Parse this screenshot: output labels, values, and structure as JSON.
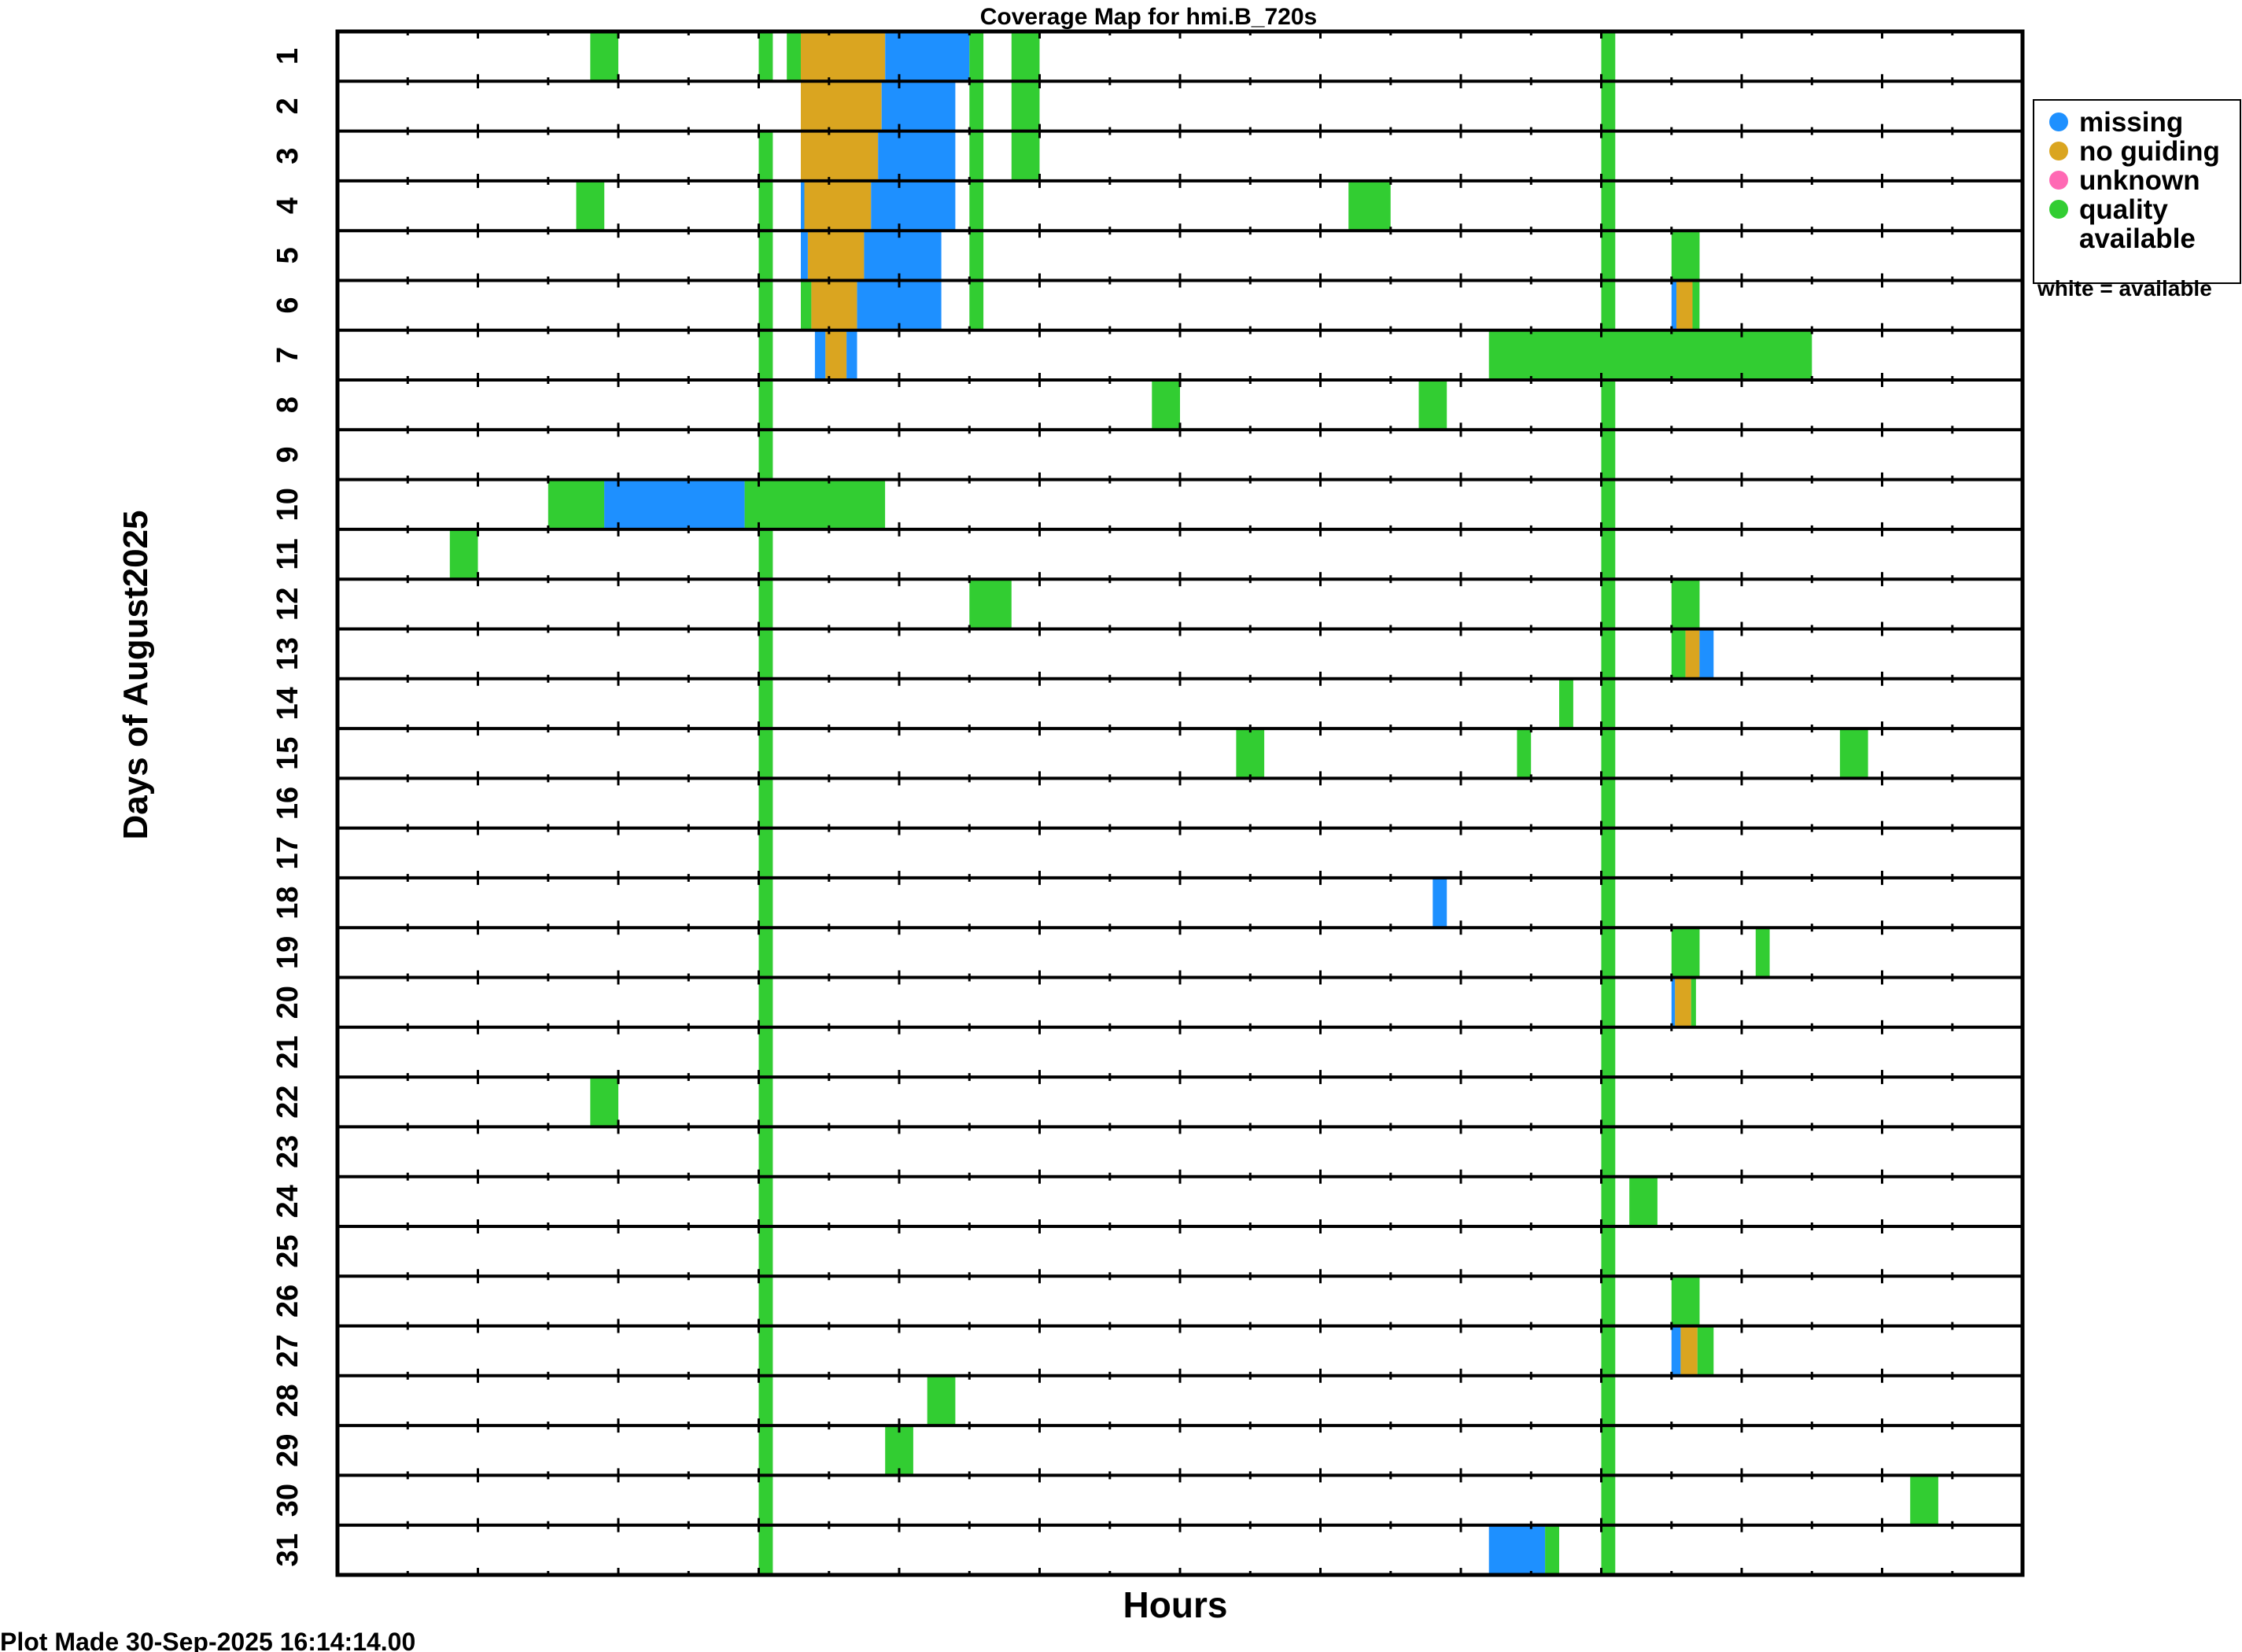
{
  "chart_data": {
    "type": "heatmap",
    "title": "Coverage Map for hmi.B_720s",
    "xlabel": "Hours",
    "ylabel": "Days of August2025",
    "xlim": [
      0,
      24
    ],
    "days": [
      "1",
      "2",
      "3",
      "4",
      "5",
      "6",
      "7",
      "8",
      "9",
      "10",
      "11",
      "12",
      "13",
      "14",
      "15",
      "16",
      "17",
      "18",
      "19",
      "20",
      "21",
      "22",
      "23",
      "24",
      "25",
      "26",
      "27",
      "28",
      "29",
      "30",
      "31"
    ],
    "colors": {
      "missing": "#1e90ff",
      "no_guiding": "#daa520",
      "unknown": "#ff69b4",
      "quality": "#32cd32"
    },
    "legend": {
      "position": "right",
      "items": [
        {
          "key": "missing",
          "label": "missing"
        },
        {
          "key": "no_guiding",
          "label": "no guiding"
        },
        {
          "key": "unknown",
          "label": "unknown"
        },
        {
          "key": "quality",
          "label": "quality",
          "label2": "available"
        }
      ],
      "note": "white = available"
    },
    "footer": "Plot Made 30-Sep-2025 16:14:14.00",
    "segments": [
      {
        "day": 1,
        "start": 3.6,
        "end": 4.0,
        "cat": "quality"
      },
      {
        "day": 1,
        "start": 6.0,
        "end": 6.2,
        "cat": "quality"
      },
      {
        "day": 1,
        "start": 6.4,
        "end": 6.6,
        "cat": "quality"
      },
      {
        "day": 1,
        "start": 6.6,
        "end": 7.8,
        "cat": "no_guiding"
      },
      {
        "day": 1,
        "start": 7.8,
        "end": 9.0,
        "cat": "missing"
      },
      {
        "day": 1,
        "start": 9.0,
        "end": 9.2,
        "cat": "quality"
      },
      {
        "day": 1,
        "start": 9.6,
        "end": 10.0,
        "cat": "quality"
      },
      {
        "day": 1,
        "start": 18.0,
        "end": 18.2,
        "cat": "quality"
      },
      {
        "day": 2,
        "start": 6.6,
        "end": 7.75,
        "cat": "no_guiding"
      },
      {
        "day": 2,
        "start": 7.75,
        "end": 8.8,
        "cat": "missing"
      },
      {
        "day": 2,
        "start": 9.0,
        "end": 9.2,
        "cat": "quality"
      },
      {
        "day": 2,
        "start": 9.6,
        "end": 10.0,
        "cat": "quality"
      },
      {
        "day": 2,
        "start": 18.0,
        "end": 18.2,
        "cat": "quality"
      },
      {
        "day": 3,
        "start": 6.0,
        "end": 6.2,
        "cat": "quality"
      },
      {
        "day": 3,
        "start": 6.6,
        "end": 7.7,
        "cat": "no_guiding"
      },
      {
        "day": 3,
        "start": 7.7,
        "end": 8.8,
        "cat": "missing"
      },
      {
        "day": 3,
        "start": 9.0,
        "end": 9.2,
        "cat": "quality"
      },
      {
        "day": 3,
        "start": 9.6,
        "end": 10.0,
        "cat": "quality"
      },
      {
        "day": 3,
        "start": 18.0,
        "end": 18.2,
        "cat": "quality"
      },
      {
        "day": 4,
        "start": 3.4,
        "end": 3.8,
        "cat": "quality"
      },
      {
        "day": 4,
        "start": 6.0,
        "end": 6.2,
        "cat": "quality"
      },
      {
        "day": 4,
        "start": 6.6,
        "end": 6.65,
        "cat": "missing"
      },
      {
        "day": 4,
        "start": 6.65,
        "end": 7.6,
        "cat": "no_guiding"
      },
      {
        "day": 4,
        "start": 7.6,
        "end": 8.8,
        "cat": "missing"
      },
      {
        "day": 4,
        "start": 9.0,
        "end": 9.2,
        "cat": "quality"
      },
      {
        "day": 4,
        "start": 14.4,
        "end": 15.0,
        "cat": "quality"
      },
      {
        "day": 4,
        "start": 18.0,
        "end": 18.2,
        "cat": "quality"
      },
      {
        "day": 5,
        "start": 6.0,
        "end": 6.2,
        "cat": "quality"
      },
      {
        "day": 5,
        "start": 6.6,
        "end": 6.7,
        "cat": "missing"
      },
      {
        "day": 5,
        "start": 6.7,
        "end": 7.5,
        "cat": "no_guiding"
      },
      {
        "day": 5,
        "start": 7.5,
        "end": 8.6,
        "cat": "missing"
      },
      {
        "day": 5,
        "start": 9.0,
        "end": 9.2,
        "cat": "quality"
      },
      {
        "day": 5,
        "start": 18.0,
        "end": 18.2,
        "cat": "quality"
      },
      {
        "day": 5,
        "start": 19.0,
        "end": 19.4,
        "cat": "quality"
      },
      {
        "day": 6,
        "start": 6.0,
        "end": 6.2,
        "cat": "quality"
      },
      {
        "day": 6,
        "start": 6.6,
        "end": 6.75,
        "cat": "quality"
      },
      {
        "day": 6,
        "start": 6.75,
        "end": 7.4,
        "cat": "no_guiding"
      },
      {
        "day": 6,
        "start": 7.4,
        "end": 8.6,
        "cat": "missing"
      },
      {
        "day": 6,
        "start": 9.0,
        "end": 9.2,
        "cat": "quality"
      },
      {
        "day": 6,
        "start": 18.0,
        "end": 18.2,
        "cat": "quality"
      },
      {
        "day": 6,
        "start": 19.0,
        "end": 19.07,
        "cat": "missing"
      },
      {
        "day": 6,
        "start": 19.07,
        "end": 19.3,
        "cat": "no_guiding"
      },
      {
        "day": 6,
        "start": 19.3,
        "end": 19.4,
        "cat": "quality"
      },
      {
        "day": 7,
        "start": 6.0,
        "end": 6.2,
        "cat": "quality"
      },
      {
        "day": 7,
        "start": 6.8,
        "end": 6.95,
        "cat": "missing"
      },
      {
        "day": 7,
        "start": 6.95,
        "end": 7.25,
        "cat": "no_guiding"
      },
      {
        "day": 7,
        "start": 7.25,
        "end": 7.4,
        "cat": "missing"
      },
      {
        "day": 7,
        "start": 16.4,
        "end": 21.0,
        "cat": "quality"
      },
      {
        "day": 8,
        "start": 6.0,
        "end": 6.2,
        "cat": "quality"
      },
      {
        "day": 8,
        "start": 11.6,
        "end": 12.0,
        "cat": "quality"
      },
      {
        "day": 8,
        "start": 15.4,
        "end": 15.8,
        "cat": "quality"
      },
      {
        "day": 8,
        "start": 18.0,
        "end": 18.2,
        "cat": "quality"
      },
      {
        "day": 9,
        "start": 6.0,
        "end": 6.2,
        "cat": "quality"
      },
      {
        "day": 9,
        "start": 18.0,
        "end": 18.2,
        "cat": "quality"
      },
      {
        "day": 10,
        "start": 3.0,
        "end": 3.8,
        "cat": "quality"
      },
      {
        "day": 10,
        "start": 3.8,
        "end": 5.8,
        "cat": "missing"
      },
      {
        "day": 10,
        "start": 5.8,
        "end": 7.8,
        "cat": "quality"
      },
      {
        "day": 10,
        "start": 18.0,
        "end": 18.2,
        "cat": "quality"
      },
      {
        "day": 11,
        "start": 1.6,
        "end": 2.0,
        "cat": "quality"
      },
      {
        "day": 11,
        "start": 6.0,
        "end": 6.2,
        "cat": "quality"
      },
      {
        "day": 11,
        "start": 18.0,
        "end": 18.2,
        "cat": "quality"
      },
      {
        "day": 12,
        "start": 6.0,
        "end": 6.2,
        "cat": "quality"
      },
      {
        "day": 12,
        "start": 9.0,
        "end": 9.6,
        "cat": "quality"
      },
      {
        "day": 12,
        "start": 18.0,
        "end": 18.2,
        "cat": "quality"
      },
      {
        "day": 12,
        "start": 19.0,
        "end": 19.4,
        "cat": "quality"
      },
      {
        "day": 13,
        "start": 6.0,
        "end": 6.2,
        "cat": "quality"
      },
      {
        "day": 13,
        "start": 18.0,
        "end": 18.2,
        "cat": "quality"
      },
      {
        "day": 13,
        "start": 19.0,
        "end": 19.2,
        "cat": "quality"
      },
      {
        "day": 13,
        "start": 19.2,
        "end": 19.4,
        "cat": "no_guiding"
      },
      {
        "day": 13,
        "start": 19.4,
        "end": 19.6,
        "cat": "missing"
      },
      {
        "day": 14,
        "start": 6.0,
        "end": 6.2,
        "cat": "quality"
      },
      {
        "day": 14,
        "start": 17.4,
        "end": 17.6,
        "cat": "quality"
      },
      {
        "day": 14,
        "start": 18.0,
        "end": 18.2,
        "cat": "quality"
      },
      {
        "day": 15,
        "start": 6.0,
        "end": 6.2,
        "cat": "quality"
      },
      {
        "day": 15,
        "start": 12.8,
        "end": 13.2,
        "cat": "quality"
      },
      {
        "day": 15,
        "start": 16.8,
        "end": 17.0,
        "cat": "quality"
      },
      {
        "day": 15,
        "start": 18.0,
        "end": 18.2,
        "cat": "quality"
      },
      {
        "day": 15,
        "start": 21.4,
        "end": 21.8,
        "cat": "quality"
      },
      {
        "day": 16,
        "start": 6.0,
        "end": 6.2,
        "cat": "quality"
      },
      {
        "day": 16,
        "start": 18.0,
        "end": 18.2,
        "cat": "quality"
      },
      {
        "day": 17,
        "start": 6.0,
        "end": 6.2,
        "cat": "quality"
      },
      {
        "day": 17,
        "start": 18.0,
        "end": 18.2,
        "cat": "quality"
      },
      {
        "day": 18,
        "start": 6.0,
        "end": 6.2,
        "cat": "quality"
      },
      {
        "day": 18,
        "start": 15.6,
        "end": 15.8,
        "cat": "missing"
      },
      {
        "day": 18,
        "start": 18.0,
        "end": 18.2,
        "cat": "quality"
      },
      {
        "day": 19,
        "start": 6.0,
        "end": 6.2,
        "cat": "quality"
      },
      {
        "day": 19,
        "start": 18.0,
        "end": 18.2,
        "cat": "quality"
      },
      {
        "day": 19,
        "start": 19.0,
        "end": 19.4,
        "cat": "quality"
      },
      {
        "day": 19,
        "start": 20.2,
        "end": 20.4,
        "cat": "quality"
      },
      {
        "day": 20,
        "start": 6.0,
        "end": 6.2,
        "cat": "quality"
      },
      {
        "day": 20,
        "start": 18.0,
        "end": 18.2,
        "cat": "quality"
      },
      {
        "day": 20,
        "start": 19.0,
        "end": 19.05,
        "cat": "missing"
      },
      {
        "day": 20,
        "start": 19.05,
        "end": 19.28,
        "cat": "no_guiding"
      },
      {
        "day": 20,
        "start": 19.28,
        "end": 19.35,
        "cat": "quality"
      },
      {
        "day": 21,
        "start": 6.0,
        "end": 6.2,
        "cat": "quality"
      },
      {
        "day": 21,
        "start": 18.0,
        "end": 18.2,
        "cat": "quality"
      },
      {
        "day": 22,
        "start": 3.6,
        "end": 4.0,
        "cat": "quality"
      },
      {
        "day": 22,
        "start": 6.0,
        "end": 6.2,
        "cat": "quality"
      },
      {
        "day": 22,
        "start": 18.0,
        "end": 18.2,
        "cat": "quality"
      },
      {
        "day": 23,
        "start": 6.0,
        "end": 6.2,
        "cat": "quality"
      },
      {
        "day": 23,
        "start": 18.0,
        "end": 18.2,
        "cat": "quality"
      },
      {
        "day": 24,
        "start": 6.0,
        "end": 6.2,
        "cat": "quality"
      },
      {
        "day": 24,
        "start": 18.0,
        "end": 18.2,
        "cat": "quality"
      },
      {
        "day": 24,
        "start": 18.4,
        "end": 18.8,
        "cat": "quality"
      },
      {
        "day": 25,
        "start": 6.0,
        "end": 6.2,
        "cat": "quality"
      },
      {
        "day": 25,
        "start": 18.0,
        "end": 18.2,
        "cat": "quality"
      },
      {
        "day": 26,
        "start": 6.0,
        "end": 6.2,
        "cat": "quality"
      },
      {
        "day": 26,
        "start": 18.0,
        "end": 18.2,
        "cat": "quality"
      },
      {
        "day": 26,
        "start": 19.0,
        "end": 19.4,
        "cat": "quality"
      },
      {
        "day": 27,
        "start": 6.0,
        "end": 6.2,
        "cat": "quality"
      },
      {
        "day": 27,
        "start": 18.0,
        "end": 18.2,
        "cat": "quality"
      },
      {
        "day": 27,
        "start": 19.0,
        "end": 19.13,
        "cat": "missing"
      },
      {
        "day": 27,
        "start": 19.13,
        "end": 19.37,
        "cat": "no_guiding"
      },
      {
        "day": 27,
        "start": 19.37,
        "end": 19.6,
        "cat": "quality"
      },
      {
        "day": 28,
        "start": 6.0,
        "end": 6.2,
        "cat": "quality"
      },
      {
        "day": 28,
        "start": 8.4,
        "end": 8.8,
        "cat": "quality"
      },
      {
        "day": 28,
        "start": 18.0,
        "end": 18.2,
        "cat": "quality"
      },
      {
        "day": 29,
        "start": 6.0,
        "end": 6.2,
        "cat": "quality"
      },
      {
        "day": 29,
        "start": 7.8,
        "end": 8.2,
        "cat": "quality"
      },
      {
        "day": 29,
        "start": 18.0,
        "end": 18.2,
        "cat": "quality"
      },
      {
        "day": 30,
        "start": 6.0,
        "end": 6.2,
        "cat": "quality"
      },
      {
        "day": 30,
        "start": 18.0,
        "end": 18.2,
        "cat": "quality"
      },
      {
        "day": 30,
        "start": 22.4,
        "end": 22.8,
        "cat": "quality"
      },
      {
        "day": 31,
        "start": 6.0,
        "end": 6.2,
        "cat": "quality"
      },
      {
        "day": 31,
        "start": 16.4,
        "end": 17.2,
        "cat": "missing"
      },
      {
        "day": 31,
        "start": 17.2,
        "end": 17.4,
        "cat": "quality"
      },
      {
        "day": 31,
        "start": 18.0,
        "end": 18.2,
        "cat": "quality"
      }
    ]
  }
}
